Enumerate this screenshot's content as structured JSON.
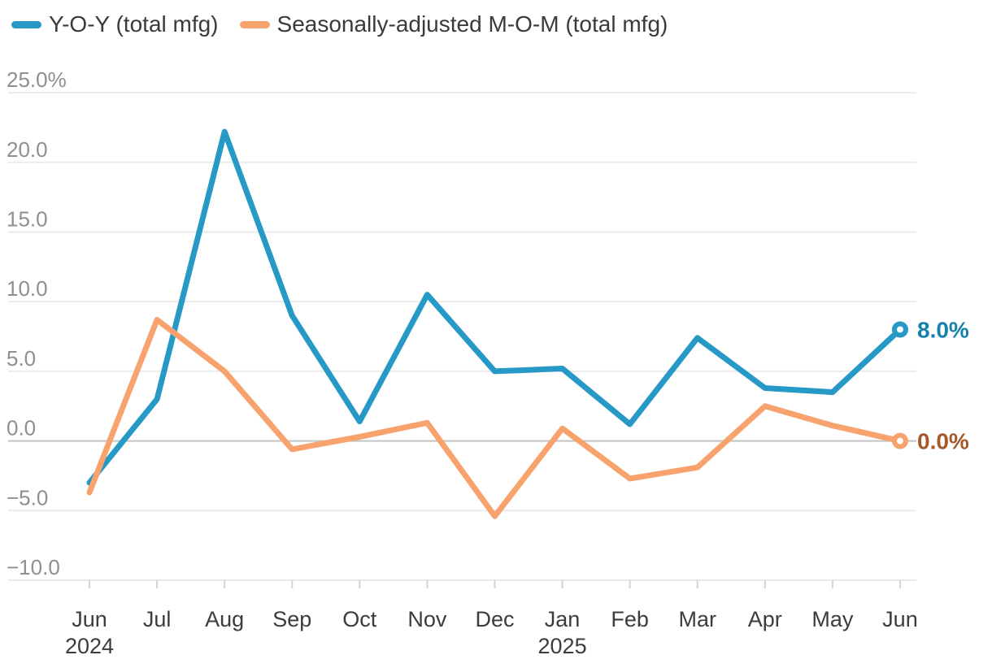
{
  "legend": {
    "items": [
      {
        "id": "yoy",
        "label": "Y-O-Y (total mfg)",
        "color": "#2699c6"
      },
      {
        "id": "mom",
        "label": "Seasonally-adjusted M-O-M (total mfg)",
        "color": "#f8a26e"
      }
    ]
  },
  "chart_data": {
    "type": "line",
    "title": "",
    "categories": [
      "Jun",
      "Jul",
      "Aug",
      "Sep",
      "Oct",
      "Nov",
      "Dec",
      "Jan",
      "Feb",
      "Mar",
      "Apr",
      "May",
      "Jun"
    ],
    "year_labels": [
      {
        "index": 0,
        "text": "2024"
      },
      {
        "index": 7,
        "text": "2025"
      }
    ],
    "series": [
      {
        "name": "Y-O-Y (total mfg)",
        "color": "#2699c6",
        "values": [
          -3.0,
          3.0,
          22.2,
          9.0,
          1.4,
          10.5,
          5.0,
          5.2,
          1.2,
          7.4,
          3.8,
          3.5,
          8.0
        ],
        "end_label": "8.0%",
        "end_label_color": "#1581ad"
      },
      {
        "name": "Seasonally-adjusted M-O-M (total mfg)",
        "color": "#f8a26e",
        "values": [
          -3.7,
          8.7,
          5.0,
          -0.6,
          0.3,
          1.3,
          -5.4,
          0.9,
          -2.7,
          -1.9,
          2.5,
          1.1,
          0.0
        ],
        "end_label": "0.0%",
        "end_label_color": "#a5582a"
      }
    ],
    "xlabel": "",
    "ylabel": "",
    "ylim": [
      -10,
      25
    ],
    "y_ticks": [
      {
        "value": 25,
        "label": "25.0%"
      },
      {
        "value": 20,
        "label": "20.0"
      },
      {
        "value": 15,
        "label": "15.0"
      },
      {
        "value": 10,
        "label": "10.0"
      },
      {
        "value": 5,
        "label": "5.0"
      },
      {
        "value": 0,
        "label": "0.0"
      },
      {
        "value": -5,
        "label": "−5.0"
      },
      {
        "value": -10,
        "label": "−10.0"
      }
    ],
    "grid": "horizontal",
    "zero_line_emphasized": true,
    "legend_position": "top-left",
    "colors": {
      "gridline": "#ebebeb",
      "zero_line": "#c4c4c4",
      "axis_tick": "#d4d4d4",
      "y_label_text": "#8f8f8f",
      "x_label_text": "#3c3c3c"
    }
  }
}
